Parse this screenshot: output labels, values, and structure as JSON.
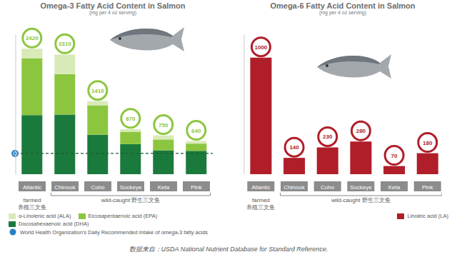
{
  "source": "数据来自：USDA National Nutrient Database for Standard Reference.",
  "chart_data": [
    {
      "type": "bar",
      "title": "Omega-3 Fatty Acid Content in Salmon",
      "subtitle": "(mg per 4 oz serving)",
      "stacked": true,
      "tick_labels": "x",
      "legend": "bottom left",
      "categories": [
        "Atlantic",
        "Chinook",
        "Coho",
        "Sockeye",
        "Keta",
        "Pink"
      ],
      "series": [
        {
          "name": "α-Linolenic acid (ALA)",
          "color": "#d9eab9",
          "values": [
            180,
            380,
            80,
            50,
            80,
            50
          ]
        },
        {
          "name": "Eicosapentaenoic acid (EPA)",
          "color": "#8cc63f",
          "values": [
            1100,
            780,
            570,
            240,
            210,
            140
          ]
        },
        {
          "name": "Docosahexaenoic acid (DHA)",
          "color": "#1a7a3c",
          "values": [
            1140,
            1150,
            760,
            580,
            460,
            450
          ]
        }
      ],
      "totals": [
        2420,
        2310,
        1410,
        870,
        750,
        640
      ],
      "ylim": [
        0,
        2700
      ],
      "reference_line": {
        "value": 400,
        "label": "World Health Organization's Daily Recommended Intake of omega-3 fatty acids"
      },
      "groups": [
        {
          "labels": [
            "farmed",
            "养殖三文鱼"
          ],
          "categories": [
            "Atlantic"
          ]
        },
        {
          "labels": [
            "wild-caught",
            "野生三文鱼"
          ],
          "categories": [
            "Chinook",
            "Coho",
            "Sockeye",
            "Keta",
            "Pink"
          ]
        }
      ]
    },
    {
      "type": "bar",
      "title": "Omega-6 Fatty Acid Content in Salmon",
      "subtitle": "(mg per 4 oz serving)",
      "tick_labels": "x",
      "data_labels": true,
      "legend": "bottom right",
      "categories": [
        "Atlantic",
        "Chinook",
        "Coho",
        "Sockeye",
        "Keta",
        "Pink"
      ],
      "series": [
        {
          "name": "Linoleic acid (LA)",
          "color": "#b01e2a",
          "values": [
            1000,
            140,
            230,
            280,
            70,
            180
          ]
        }
      ],
      "ylim": [
        0,
        1200
      ],
      "groups": [
        {
          "labels": [
            "farmed",
            "养殖三文鱼"
          ],
          "categories": [
            "Atlantic"
          ]
        },
        {
          "labels": [
            "wild-caught",
            "野生三文鱼"
          ],
          "categories": [
            "Chinook",
            "Coho",
            "Sockeye",
            "Keta",
            "Pink"
          ]
        }
      ]
    }
  ]
}
